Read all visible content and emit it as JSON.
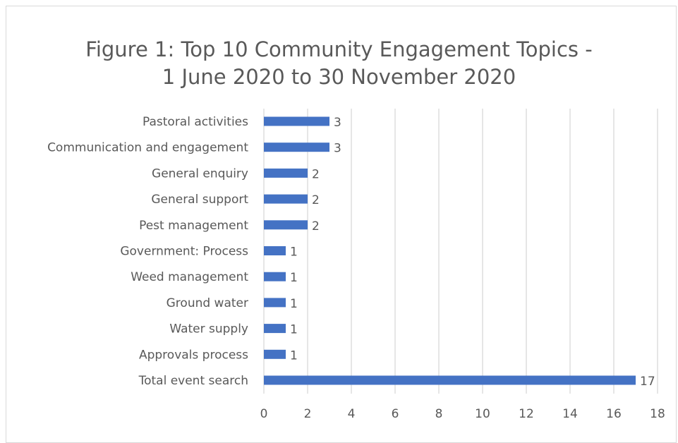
{
  "chart_data": {
    "type": "bar",
    "orientation": "horizontal",
    "title": "Figure 1: Top 10 Community Engagement Topics - 1 June 2020 to 30 November 2020",
    "title_lines": [
      "Figure 1: Top 10 Community Engagement Topics -",
      "1 June 2020 to 30 November 2020"
    ],
    "categories": [
      "Pastoral activities",
      "Communication and engagement",
      "General enquiry",
      "General support",
      "Pest management",
      "Government: Process",
      "Weed management",
      "Ground water",
      "Water supply",
      "Approvals process",
      "Total event search"
    ],
    "values": [
      3,
      3,
      2,
      2,
      2,
      1,
      1,
      1,
      1,
      1,
      17
    ],
    "xlim": [
      0,
      18
    ],
    "xticks": [
      0,
      2,
      4,
      6,
      8,
      10,
      12,
      14,
      16,
      18
    ],
    "xlabel": "",
    "ylabel": "",
    "grid": "vertical",
    "legend": "none",
    "bar_color": "#4472c4",
    "grid_color": "#d9d9d9",
    "text_color": "#595959"
  }
}
